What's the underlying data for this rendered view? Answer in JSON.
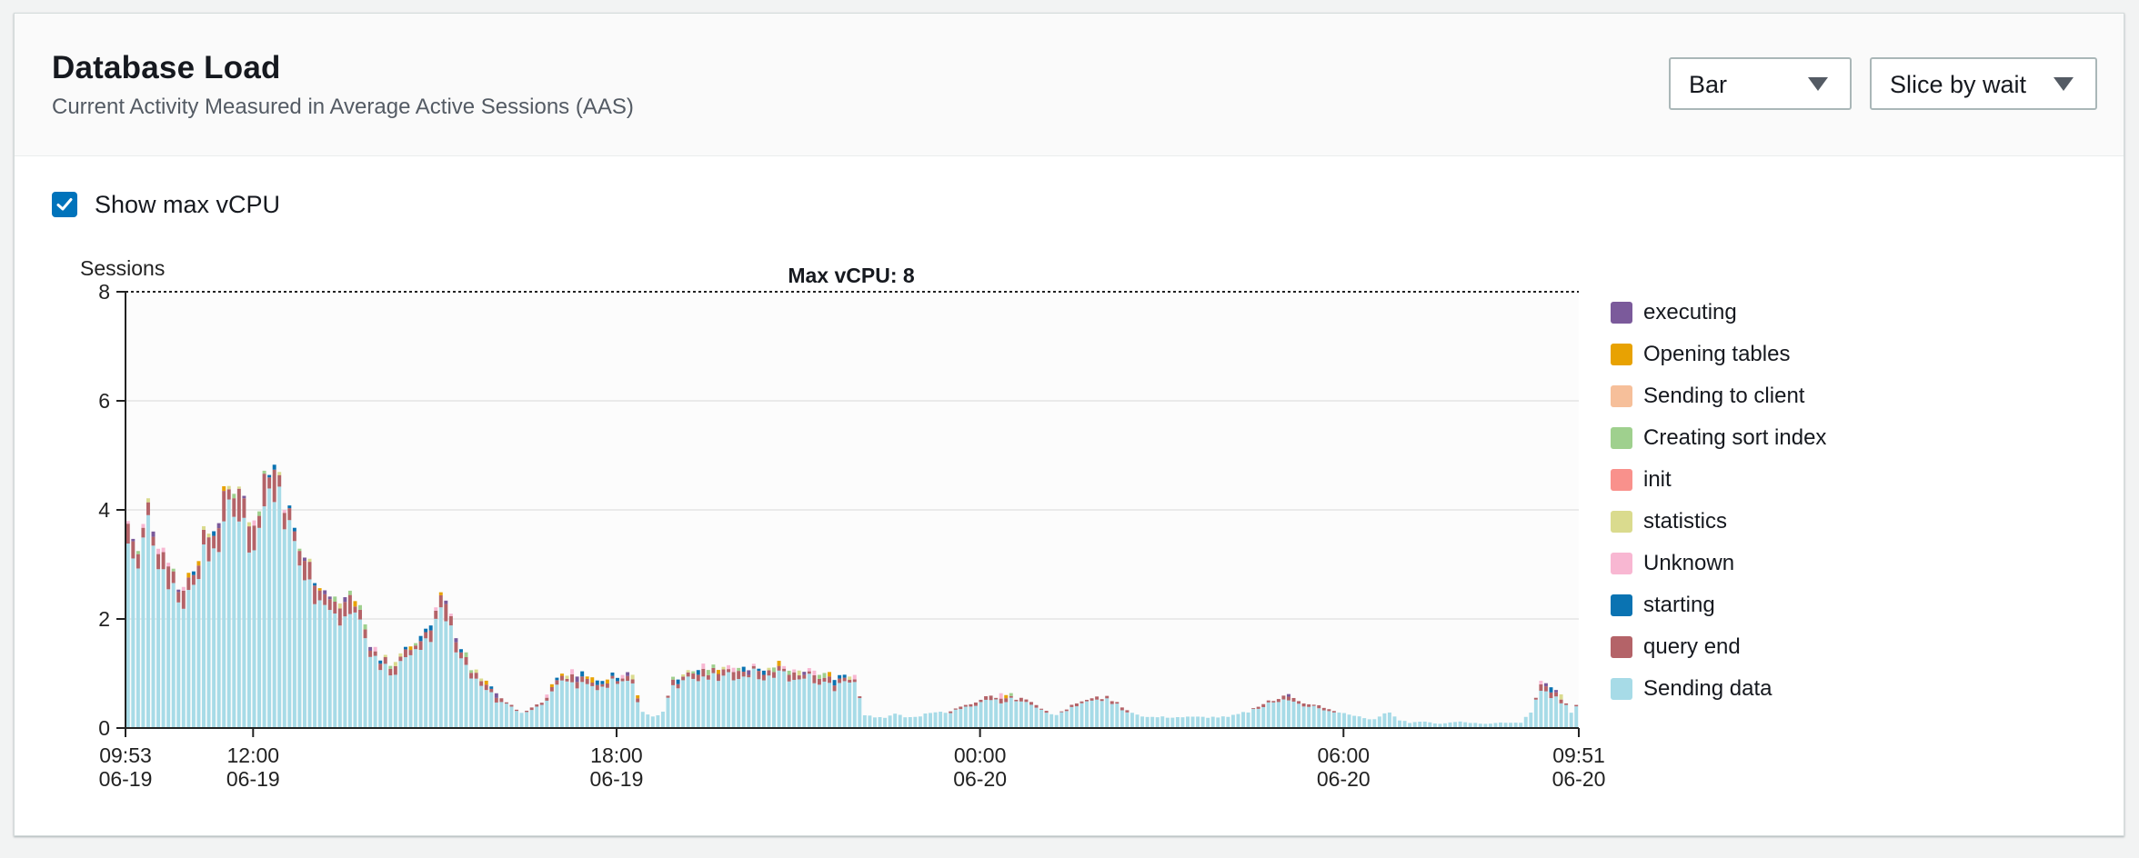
{
  "header": {
    "title": "Database Load",
    "subtitle": "Current Activity Measured in Average Active Sessions (AAS)"
  },
  "controls": {
    "chart_type_select": "Bar",
    "slice_select": "Slice by wait",
    "show_max_vcpu_label": "Show max vCPU",
    "show_max_vcpu_checked": true
  },
  "colors": {
    "executing": "#7b5a9b",
    "Opening tables": "#e8a202",
    "Sending to client": "#f6bf9a",
    "Creating sort index": "#9fd08e",
    "init": "#f9918c",
    "statistics": "#dadb8e",
    "Unknown": "#f8b7d2",
    "starting": "#0a73b2",
    "query end": "#b46368",
    "Sending data": "#a7dbe7"
  },
  "chart_data": {
    "type": "bar",
    "stacked": true,
    "ylabel": "Sessions",
    "ylim": [
      0,
      8
    ],
    "yticks": [
      0,
      2,
      4,
      6,
      8
    ],
    "max_line": {
      "value": 8,
      "label": "Max vCPU: 8"
    },
    "grid": true,
    "legend_position": "right",
    "x_start": "09:53 06-19",
    "x_end": "09:51 06-20",
    "xticks": [
      {
        "time": "09:53",
        "date": "06-19",
        "pos": 0.0
      },
      {
        "time": "12:00",
        "date": "06-19",
        "pos": 0.0878
      },
      {
        "time": "18:00",
        "date": "06-19",
        "pos": 0.3379
      },
      {
        "time": "00:00",
        "date": "06-20",
        "pos": 0.588
      },
      {
        "time": "06:00",
        "date": "06-20",
        "pos": 0.8381
      },
      {
        "time": "09:51",
        "date": "06-20",
        "pos": 1.0
      }
    ],
    "legend": [
      "executing",
      "Opening tables",
      "Sending to client",
      "Creating sort index",
      "init",
      "statistics",
      "Unknown",
      "starting",
      "query end",
      "Sending data"
    ],
    "bar_count": 288,
    "profile_knots": [
      [
        0,
        3.8
      ],
      [
        2,
        3.2
      ],
      [
        4,
        4.1
      ],
      [
        6,
        3.5
      ],
      [
        8,
        3.2
      ],
      [
        10,
        2.6
      ],
      [
        12,
        2.8
      ],
      [
        14,
        3.3
      ],
      [
        16,
        3.6
      ],
      [
        18,
        3.9
      ],
      [
        20,
        4.4
      ],
      [
        22,
        4.6
      ],
      [
        24,
        3.8
      ],
      [
        26,
        4.3
      ],
      [
        28,
        4.9
      ],
      [
        30,
        4.7
      ],
      [
        32,
        3.9
      ],
      [
        34,
        3.3
      ],
      [
        36,
        3.0
      ],
      [
        38,
        2.7
      ],
      [
        40,
        2.4
      ],
      [
        42,
        2.3
      ],
      [
        44,
        2.5
      ],
      [
        46,
        2.2
      ],
      [
        48,
        1.6
      ],
      [
        50,
        1.3
      ],
      [
        52,
        1.2
      ],
      [
        54,
        1.3
      ],
      [
        56,
        1.5
      ],
      [
        58,
        1.7
      ],
      [
        60,
        2.0
      ],
      [
        62,
        2.4
      ],
      [
        64,
        2.0
      ],
      [
        66,
        1.5
      ],
      [
        68,
        1.1
      ],
      [
        70,
        0.9
      ],
      [
        72,
        0.75
      ],
      [
        74,
        0.55
      ],
      [
        76,
        0.4
      ],
      [
        78,
        0.3
      ],
      [
        80,
        0.35
      ],
      [
        82,
        0.5
      ],
      [
        84,
        0.8
      ],
      [
        86,
        1.0
      ],
      [
        88,
        1.05
      ],
      [
        90,
        1.0
      ],
      [
        92,
        0.95
      ],
      [
        94,
        0.9
      ],
      [
        96,
        0.95
      ],
      [
        98,
        1.0
      ],
      [
        100,
        0.95
      ],
      [
        102,
        0.3
      ],
      [
        104,
        0.2
      ],
      [
        106,
        0.3
      ],
      [
        108,
        0.9
      ],
      [
        110,
        1.0
      ],
      [
        112,
        1.05
      ],
      [
        114,
        1.1
      ],
      [
        116,
        1.1
      ],
      [
        118,
        1.15
      ],
      [
        120,
        1.2
      ],
      [
        122,
        1.1
      ],
      [
        124,
        1.15
      ],
      [
        126,
        1.1
      ],
      [
        128,
        1.2
      ],
      [
        130,
        1.1
      ],
      [
        132,
        1.0
      ],
      [
        134,
        1.05
      ],
      [
        136,
        1.0
      ],
      [
        138,
        1.0
      ],
      [
        140,
        0.95
      ],
      [
        142,
        1.0
      ],
      [
        144,
        1.0
      ],
      [
        146,
        0.25
      ],
      [
        148,
        0.2
      ],
      [
        150,
        0.2
      ],
      [
        152,
        0.25
      ],
      [
        154,
        0.2
      ],
      [
        156,
        0.2
      ],
      [
        158,
        0.25
      ],
      [
        160,
        0.3
      ],
      [
        162,
        0.3
      ],
      [
        164,
        0.35
      ],
      [
        166,
        0.4
      ],
      [
        168,
        0.45
      ],
      [
        170,
        0.55
      ],
      [
        172,
        0.6
      ],
      [
        174,
        0.65
      ],
      [
        176,
        0.55
      ],
      [
        178,
        0.5
      ],
      [
        180,
        0.45
      ],
      [
        182,
        0.3
      ],
      [
        184,
        0.25
      ],
      [
        186,
        0.35
      ],
      [
        188,
        0.45
      ],
      [
        190,
        0.55
      ],
      [
        192,
        0.6
      ],
      [
        194,
        0.55
      ],
      [
        196,
        0.45
      ],
      [
        198,
        0.35
      ],
      [
        200,
        0.25
      ],
      [
        202,
        0.2
      ],
      [
        204,
        0.2
      ],
      [
        206,
        0.2
      ],
      [
        208,
        0.2
      ],
      [
        210,
        0.2
      ],
      [
        212,
        0.2
      ],
      [
        214,
        0.2
      ],
      [
        216,
        0.2
      ],
      [
        218,
        0.2
      ],
      [
        220,
        0.25
      ],
      [
        222,
        0.3
      ],
      [
        224,
        0.4
      ],
      [
        226,
        0.5
      ],
      [
        228,
        0.55
      ],
      [
        230,
        0.6
      ],
      [
        232,
        0.5
      ],
      [
        234,
        0.45
      ],
      [
        236,
        0.4
      ],
      [
        238,
        0.35
      ],
      [
        240,
        0.3
      ],
      [
        242,
        0.25
      ],
      [
        244,
        0.2
      ],
      [
        246,
        0.15
      ],
      [
        248,
        0.2
      ],
      [
        250,
        0.3
      ],
      [
        252,
        0.15
      ],
      [
        254,
        0.1
      ],
      [
        256,
        0.12
      ],
      [
        258,
        0.1
      ],
      [
        260,
        0.08
      ],
      [
        262,
        0.1
      ],
      [
        264,
        0.12
      ],
      [
        266,
        0.1
      ],
      [
        268,
        0.08
      ],
      [
        270,
        0.08
      ],
      [
        272,
        0.1
      ],
      [
        274,
        0.1
      ],
      [
        276,
        0.1
      ],
      [
        278,
        0.3
      ],
      [
        280,
        0.9
      ],
      [
        282,
        0.75
      ],
      [
        284,
        0.6
      ],
      [
        286,
        0.3
      ],
      [
        287,
        0.4
      ]
    ]
  }
}
